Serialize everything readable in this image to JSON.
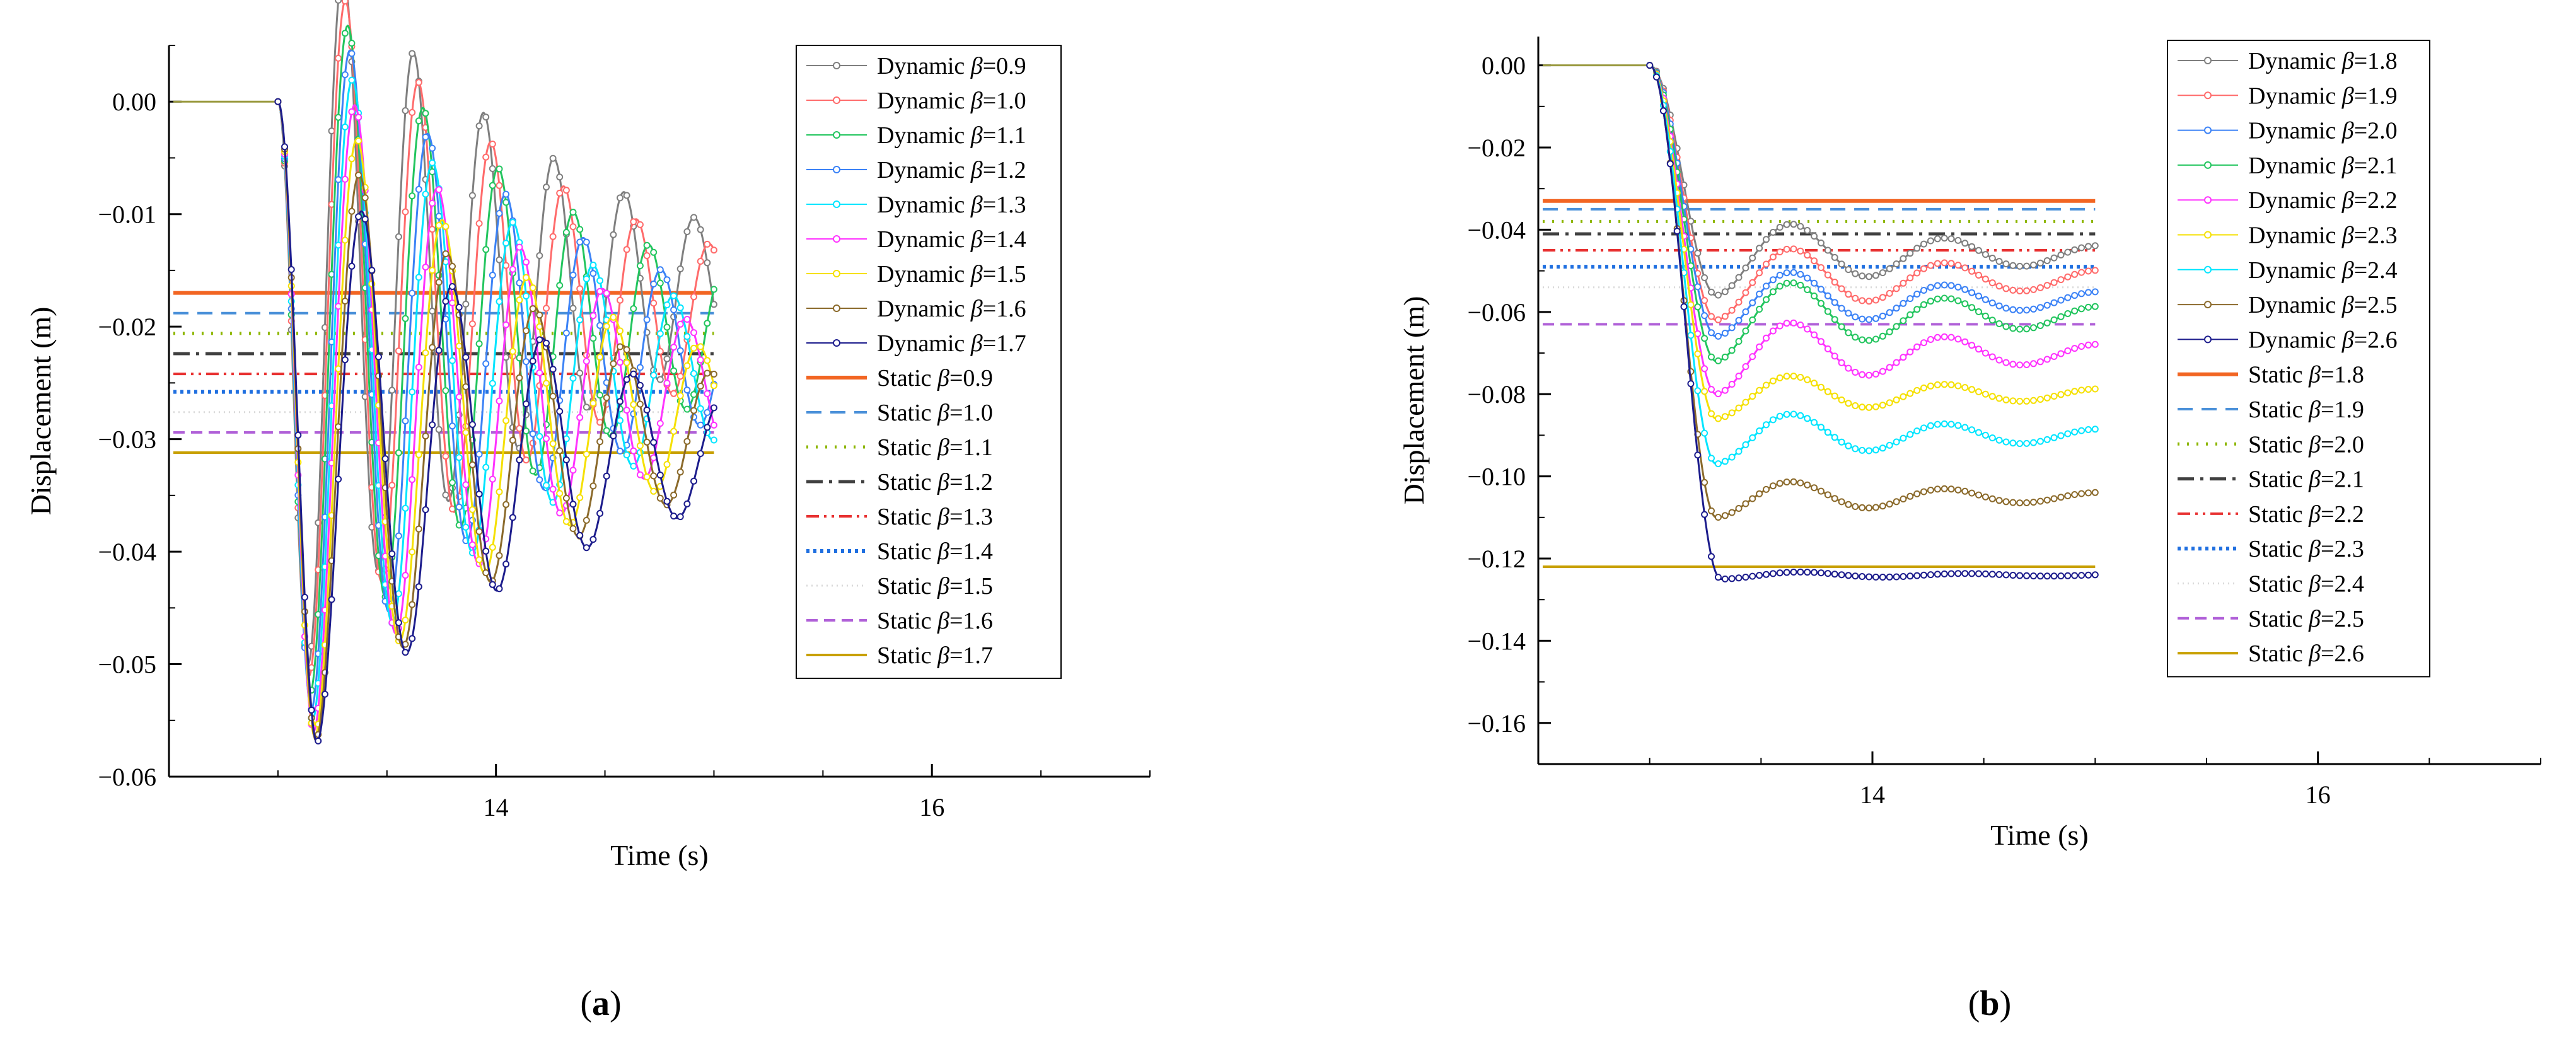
{
  "chart_data": [
    {
      "type": "line",
      "panel_label": "(a)",
      "xlabel": "Time (s)",
      "ylabel": "Displacement (m)",
      "xlim": [
        12.5,
        17
      ],
      "ylim": [
        -0.06,
        0.005
      ],
      "xticks": [
        14,
        16
      ],
      "xtick_labels": [
        "14",
        "16"
      ],
      "yticks": [
        0,
        -0.01,
        -0.02,
        -0.03,
        -0.04,
        -0.05,
        -0.06
      ],
      "ytick_labels": [
        "0.00",
        "−0.01",
        "−0.02",
        "−0.03",
        "−0.04",
        "−0.05",
        "−0.06"
      ],
      "legend_position": "top-right",
      "t_start": 13.0,
      "t_end": 15.0,
      "dynamic_series": [
        {
          "name": "Dynamic β=0.9",
          "prefix": "Dynamic ",
          "sym": "β",
          "val": "=0.9",
          "color": "#7f7f7f",
          "static_level": -0.017,
          "peak": -0.05,
          "tp": 0.14
        },
        {
          "name": "Dynamic β=1.0",
          "prefix": "Dynamic ",
          "sym": "β",
          "val": "=1.0",
          "color": "#ff6b6b",
          "static_level": -0.0188,
          "peak": -0.051,
          "tp": 0.145
        },
        {
          "name": "Dynamic β=1.1",
          "prefix": "Dynamic ",
          "sym": "β",
          "val": "=1.1",
          "color": "#22c55e",
          "static_level": -0.0206,
          "peak": -0.0525,
          "tp": 0.15
        },
        {
          "name": "Dynamic β=1.2",
          "prefix": "Dynamic ",
          "sym": "β",
          "val": "=1.2",
          "color": "#3b82f6",
          "static_level": -0.0224,
          "peak": -0.054,
          "tp": 0.155
        },
        {
          "name": "Dynamic β=1.3",
          "prefix": "Dynamic ",
          "sym": "β",
          "val": "=1.3",
          "color": "#00e5ff",
          "static_level": -0.0242,
          "peak": -0.055,
          "tp": 0.16
        },
        {
          "name": "Dynamic β=1.4",
          "prefix": "Dynamic ",
          "sym": "β",
          "val": "=1.4",
          "color": "#ff33ff",
          "static_level": -0.0258,
          "peak": -0.056,
          "tp": 0.165
        },
        {
          "name": "Dynamic β=1.5",
          "prefix": "Dynamic ",
          "sym": "β",
          "val": "=1.5",
          "color": "#f5e000",
          "static_level": -0.0276,
          "peak": -0.0565,
          "tp": 0.17
        },
        {
          "name": "Dynamic β=1.6",
          "prefix": "Dynamic ",
          "sym": "β",
          "val": "=1.6",
          "color": "#8b6a2b",
          "static_level": -0.0294,
          "peak": -0.0568,
          "tp": 0.175
        },
        {
          "name": "Dynamic β=1.7",
          "prefix": "Dynamic ",
          "sym": "β",
          "val": "=1.7",
          "color": "#1c1c8c",
          "static_level": -0.0312,
          "peak": -0.057,
          "tp": 0.18
        }
      ],
      "static_series": [
        {
          "name": "Static β=0.9",
          "prefix": "Static ",
          "sym": "β",
          "val": "=0.9",
          "value": -0.017,
          "color": "#f26522",
          "dash": "none",
          "width": 6
        },
        {
          "name": "Static β=1.0",
          "prefix": "Static ",
          "sym": "β",
          "val": "=1.0",
          "value": -0.0188,
          "color": "#4a90d9",
          "dash": "24 14",
          "width": 4
        },
        {
          "name": "Static β=1.1",
          "prefix": "Static ",
          "sym": "β",
          "val": "=1.1",
          "value": -0.0206,
          "color": "#8db600",
          "dash": "3 12",
          "width": 5
        },
        {
          "name": "Static β=1.2",
          "prefix": "Static ",
          "sym": "β",
          "val": "=1.2",
          "value": -0.0224,
          "color": "#404040",
          "dash": "26 10 5 10",
          "width": 5
        },
        {
          "name": "Static β=1.3",
          "prefix": "Static ",
          "sym": "β",
          "val": "=1.3",
          "value": -0.0242,
          "color": "#e83030",
          "dash": "20 8 4 8 4 8",
          "width": 4
        },
        {
          "name": "Static β=1.4",
          "prefix": "Static ",
          "sym": "β",
          "val": "=1.4",
          "value": -0.0258,
          "color": "#1f6fe0",
          "dash": "5 6",
          "width": 6
        },
        {
          "name": "Static β=1.5",
          "prefix": "Static ",
          "sym": "β",
          "val": "=1.5",
          "value": -0.0276,
          "color": "#d9d9d9",
          "dash": "2 6",
          "width": 3
        },
        {
          "name": "Static β=1.6",
          "prefix": "Static ",
          "sym": "β",
          "val": "=1.6",
          "value": -0.0294,
          "color": "#b060d8",
          "dash": "18 10",
          "width": 4
        },
        {
          "name": "Static β=1.7",
          "prefix": "Static ",
          "sym": "β",
          "val": "=1.7",
          "value": -0.0312,
          "color": "#c8a000",
          "dash": "none",
          "width": 4
        }
      ]
    },
    {
      "type": "line",
      "panel_label": "(b)",
      "xlabel": "Time (s)",
      "ylabel": "Displacement (m)",
      "xlim": [
        12.5,
        17
      ],
      "ylim": [
        -0.17,
        0.007
      ],
      "xticks": [
        14,
        16
      ],
      "xtick_labels": [
        "14",
        "16"
      ],
      "yticks": [
        0,
        -0.02,
        -0.04,
        -0.06,
        -0.08,
        -0.1,
        -0.12,
        -0.14,
        -0.16
      ],
      "ytick_labels": [
        "0.00",
        "−0.02",
        "−0.04",
        "−0.06",
        "−0.08",
        "−0.10",
        "−0.12",
        "−0.14",
        "−0.16"
      ],
      "legend_position": "top-right",
      "t_start": 13.0,
      "t_end": 15.0,
      "dynamic_series": [
        {
          "name": "Dynamic β=1.8",
          "prefix": "Dynamic ",
          "sym": "β",
          "val": "=1.8",
          "color": "#7f7f7f",
          "static_level": -0.046,
          "peak": -0.056,
          "tp": 0.3
        },
        {
          "name": "Dynamic β=1.9",
          "prefix": "Dynamic ",
          "sym": "β",
          "val": "=1.9",
          "color": "#ff6b6b",
          "static_level": -0.052,
          "peak": -0.062,
          "tp": 0.3
        },
        {
          "name": "Dynamic β=2.0",
          "prefix": "Dynamic ",
          "sym": "β",
          "val": "=2.0",
          "color": "#3b82f6",
          "static_level": -0.057,
          "peak": -0.066,
          "tp": 0.3
        },
        {
          "name": "Dynamic β=2.1",
          "prefix": "Dynamic ",
          "sym": "β",
          "val": "=2.1",
          "color": "#22c55e",
          "static_level": -0.061,
          "peak": -0.072,
          "tp": 0.3
        },
        {
          "name": "Dynamic β=2.2",
          "prefix": "Dynamic ",
          "sym": "β",
          "val": "=2.2",
          "color": "#ff33ff",
          "static_level": -0.07,
          "peak": -0.08,
          "tp": 0.3
        },
        {
          "name": "Dynamic β=2.3",
          "prefix": "Dynamic ",
          "sym": "β",
          "val": "=2.3",
          "color": "#f5e000",
          "static_level": -0.08,
          "peak": -0.086,
          "tp": 0.3
        },
        {
          "name": "Dynamic β=2.4",
          "prefix": "Dynamic ",
          "sym": "β",
          "val": "=2.4",
          "color": "#00e5ff",
          "static_level": -0.09,
          "peak": -0.097,
          "tp": 0.3
        },
        {
          "name": "Dynamic β=2.5",
          "prefix": "Dynamic ",
          "sym": "β",
          "val": "=2.5",
          "color": "#8b6a2b",
          "static_level": -0.105,
          "peak": -0.11,
          "tp": 0.3
        },
        {
          "name": "Dynamic β=2.6",
          "prefix": "Dynamic ",
          "sym": "β",
          "val": "=2.6",
          "color": "#1c1c8c",
          "static_level": -0.124,
          "peak": -0.125,
          "tp": 0.32
        }
      ],
      "static_series": [
        {
          "name": "Static β=1.8",
          "prefix": "Static ",
          "sym": "β",
          "val": "=1.8",
          "value": -0.033,
          "color": "#f26522",
          "dash": "none",
          "width": 6
        },
        {
          "name": "Static β=1.9",
          "prefix": "Static ",
          "sym": "β",
          "val": "=1.9",
          "value": -0.035,
          "color": "#4a90d9",
          "dash": "24 14",
          "width": 4
        },
        {
          "name": "Static β=2.0",
          "prefix": "Static ",
          "sym": "β",
          "val": "=2.0",
          "value": -0.038,
          "color": "#8db600",
          "dash": "3 12",
          "width": 5
        },
        {
          "name": "Static β=2.1",
          "prefix": "Static ",
          "sym": "β",
          "val": "=2.1",
          "value": -0.041,
          "color": "#404040",
          "dash": "26 10 5 10",
          "width": 5
        },
        {
          "name": "Static β=2.2",
          "prefix": "Static ",
          "sym": "β",
          "val": "=2.2",
          "value": -0.045,
          "color": "#e83030",
          "dash": "20 8 4 8 4 8",
          "width": 4
        },
        {
          "name": "Static β=2.3",
          "prefix": "Static ",
          "sym": "β",
          "val": "=2.3",
          "value": -0.049,
          "color": "#1f6fe0",
          "dash": "5 6",
          "width": 6
        },
        {
          "name": "Static β=2.4",
          "prefix": "Static ",
          "sym": "β",
          "val": "=2.4",
          "value": -0.054,
          "color": "#d9d9d9",
          "dash": "2 6",
          "width": 3
        },
        {
          "name": "Static β=2.5",
          "prefix": "Static ",
          "sym": "β",
          "val": "=2.5",
          "value": -0.063,
          "color": "#b060d8",
          "dash": "18 10",
          "width": 4
        },
        {
          "name": "Static β=2.6",
          "prefix": "Static ",
          "sym": "β",
          "val": "=2.6",
          "value": -0.122,
          "color": "#c8a000",
          "dash": "none",
          "width": 4
        }
      ]
    }
  ]
}
